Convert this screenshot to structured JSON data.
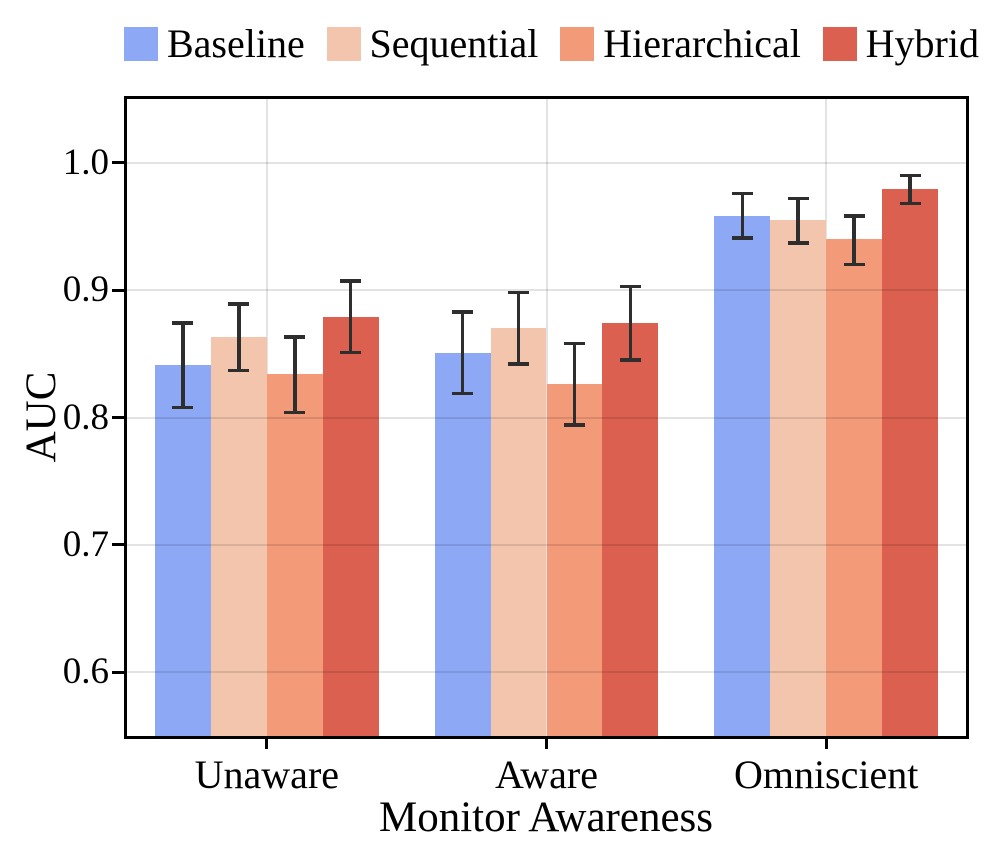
{
  "chart_data": {
    "type": "bar",
    "title": "",
    "xlabel": "Monitor Awareness",
    "ylabel": "AUC",
    "categories": [
      "Unaware",
      "Aware",
      "Omniscient"
    ],
    "series": [
      {
        "name": "Baseline",
        "color": "#8DA9F6",
        "values": [
          0.841,
          0.851,
          0.958
        ],
        "err_lo": [
          0.808,
          0.819,
          0.941
        ],
        "err_hi": [
          0.874,
          0.883,
          0.976
        ]
      },
      {
        "name": "Sequential",
        "color": "#F3C5AC",
        "values": [
          0.863,
          0.87,
          0.955
        ],
        "err_lo": [
          0.837,
          0.842,
          0.937
        ],
        "err_hi": [
          0.889,
          0.898,
          0.972
        ]
      },
      {
        "name": "Hierarchical",
        "color": "#F39A79",
        "values": [
          0.834,
          0.826,
          0.94
        ],
        "err_lo": [
          0.804,
          0.794,
          0.92
        ],
        "err_hi": [
          0.863,
          0.858,
          0.958
        ]
      },
      {
        "name": "Hybrid",
        "color": "#DB604F",
        "values": [
          0.879,
          0.874,
          0.979
        ],
        "err_lo": [
          0.851,
          0.845,
          0.968
        ],
        "err_hi": [
          0.907,
          0.903,
          0.99
        ]
      }
    ],
    "ylim": [
      0.55,
      1.05
    ],
    "yticks": [
      1.0,
      0.9,
      0.8,
      0.7,
      0.6
    ],
    "ytick_labels": [
      "1.0",
      "0.9",
      "0.8",
      "0.7",
      "0.6"
    ],
    "grid": true,
    "legend_position": "top",
    "colors": {
      "axis": "#000000",
      "error_bar": "#2E2E2E",
      "vgrid": "#E3E3E3",
      "hgrid_overlay": "rgba(0,0,0,0.11)"
    }
  }
}
